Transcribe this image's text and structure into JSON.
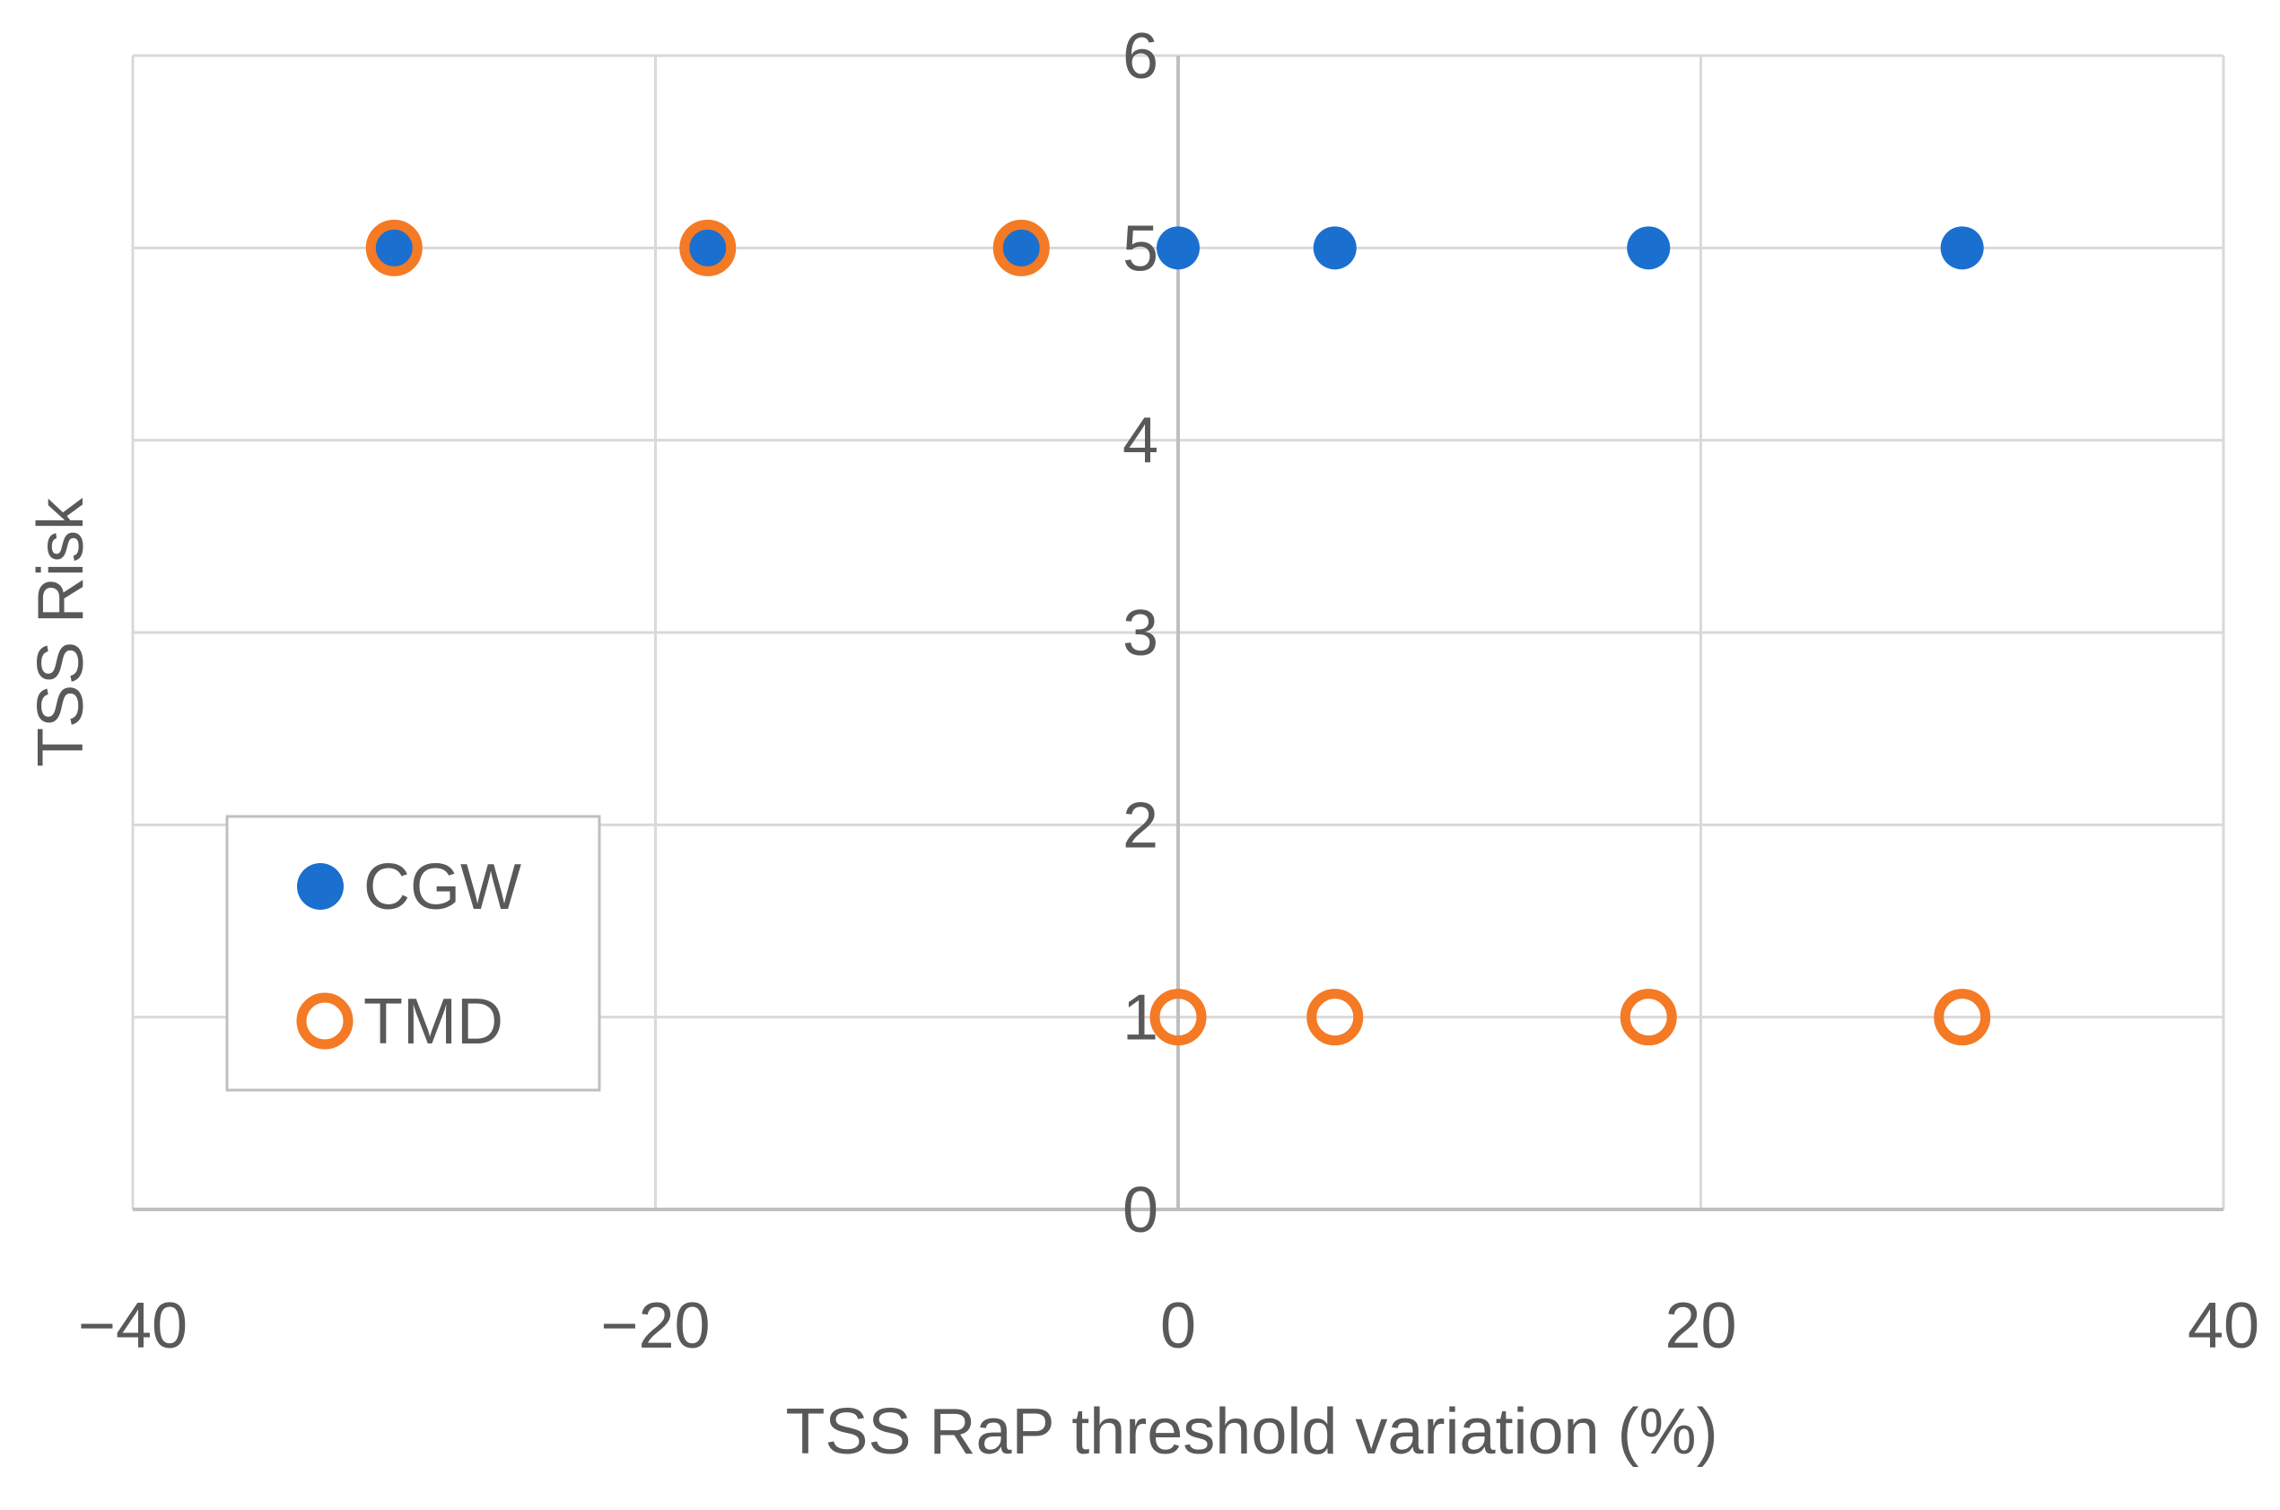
{
  "chart_data": {
    "type": "scatter",
    "title": "",
    "xlabel": "TSS RaP threshold variation (%)",
    "ylabel": "TSS Risk",
    "xlim": [
      -40,
      40
    ],
    "ylim": [
      0,
      6
    ],
    "xticks": [
      -40,
      -20,
      0,
      20,
      40
    ],
    "xtick_labels": [
      "−40",
      "−20",
      "0",
      "20",
      "40"
    ],
    "yticks": [
      0,
      1,
      2,
      3,
      4,
      5,
      6
    ],
    "ytick_labels": [
      "0",
      "1",
      "2",
      "3",
      "4",
      "5",
      "6"
    ],
    "grid": true,
    "legend_position": "bottom-left",
    "series": [
      {
        "name": "CGW",
        "marker": "filled-circle",
        "color": "#1a6fcf",
        "points": [
          {
            "x": -30,
            "y": 5
          },
          {
            "x": -18,
            "y": 5
          },
          {
            "x": -6,
            "y": 5
          },
          {
            "x": 0,
            "y": 5
          },
          {
            "x": 6,
            "y": 5
          },
          {
            "x": 18,
            "y": 5
          },
          {
            "x": 30,
            "y": 5
          }
        ]
      },
      {
        "name": "TMD",
        "marker": "hollow-circle",
        "color": "#f47a25",
        "points": [
          {
            "x": -30,
            "y": 5
          },
          {
            "x": -18,
            "y": 5
          },
          {
            "x": -6,
            "y": 5
          },
          {
            "x": 0,
            "y": 1
          },
          {
            "x": 6,
            "y": 1
          },
          {
            "x": 18,
            "y": 1
          },
          {
            "x": 30,
            "y": 1
          }
        ]
      }
    ]
  }
}
